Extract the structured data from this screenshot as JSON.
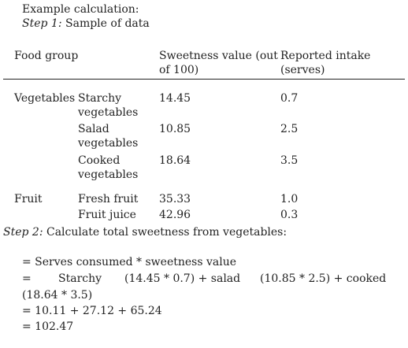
{
  "intro": {
    "heading": "Example calculation:",
    "step1_label": "Step 1:",
    "step1_text": "Sample of data"
  },
  "table": {
    "headers": {
      "food_group": "Food group",
      "sweetness_line1": "Sweetness value (out",
      "sweetness_line2": "of 100)",
      "intake_line1": "Reported intake",
      "intake_line2": "(serves)"
    },
    "rows": [
      {
        "group": "Vegetables",
        "item_line1": "Starchy",
        "item_line2": "vegetables",
        "sweetness": "14.45",
        "intake": "0.7"
      },
      {
        "group": "",
        "item_line1": "Salad",
        "item_line2": "vegetables",
        "sweetness": "10.85",
        "intake": "2.5"
      },
      {
        "group": "",
        "item_line1": "Cooked",
        "item_line2": "vegetables",
        "sweetness": "18.64",
        "intake": "3.5"
      },
      {
        "group": "Fruit",
        "item_line1": "Fresh fruit",
        "item_line2": "",
        "sweetness": "35.33",
        "intake": "1.0"
      },
      {
        "group": "",
        "item_line1": "Fruit juice",
        "item_line2": "",
        "sweetness": "42.96",
        "intake": "0.3"
      }
    ]
  },
  "step2": {
    "label": "Step 2:",
    "text": "Calculate total sweetness from vegetables:"
  },
  "calculation": {
    "line1": "= Serves consumed * sweetness value",
    "line2_eq": "=",
    "line2_starchy": "Starchy",
    "line2_part1": "(14.45 * 0.7) + salad",
    "line2_part2": "(10.85 * 2.5) + cooked",
    "line3": "(18.64 * 3.5)",
    "line4": "= 10.11 + 27.12 + 65.24",
    "line5": "= 102.47"
  }
}
